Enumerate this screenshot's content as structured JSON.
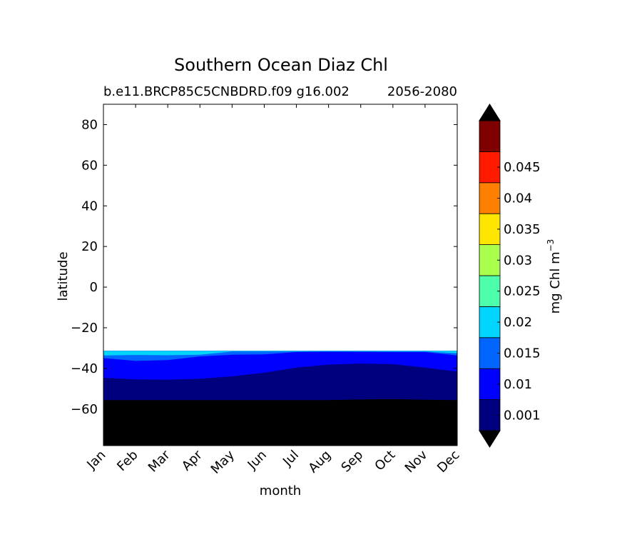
{
  "chart_data": {
    "type": "heatmap",
    "title": "Southern Ocean Diaz Chl",
    "subtitle_left": "b.e11.BRCP85C5CNBDRD.f09 g16.002",
    "subtitle_right": "2056-2080",
    "xlabel": "month",
    "ylabel": "latitude",
    "x_categories": [
      "Jan",
      "Feb",
      "Mar",
      "Apr",
      "May",
      "Jun",
      "Jul",
      "Aug",
      "Sep",
      "Oct",
      "Nov",
      "Dec"
    ],
    "y_ticks": [
      80,
      60,
      40,
      20,
      0,
      -20,
      -40,
      -60
    ],
    "ylim": [
      -78,
      90
    ],
    "colorbar": {
      "label": "mg Chl m",
      "label_superscript": "−3",
      "tick_labels": [
        "0.001",
        "0.01",
        "0.015",
        "0.02",
        "0.025",
        "0.03",
        "0.035",
        "0.04",
        "0.045"
      ],
      "bins": [
        {
          "lo": 0,
          "hi": 0.001,
          "color": "#00007f"
        },
        {
          "lo": 0.001,
          "hi": 0.01,
          "color": "#0000ff"
        },
        {
          "lo": 0.01,
          "hi": 0.015,
          "color": "#0066ff"
        },
        {
          "lo": 0.015,
          "hi": 0.02,
          "color": "#00d5ff"
        },
        {
          "lo": 0.02,
          "hi": 0.025,
          "color": "#4dffaa"
        },
        {
          "lo": 0.025,
          "hi": 0.03,
          "color": "#aaff4d"
        },
        {
          "lo": 0.03,
          "hi": 0.035,
          "color": "#ffe600"
        },
        {
          "lo": 0.035,
          "hi": 0.04,
          "color": "#ff7f00"
        },
        {
          "lo": 0.04,
          "hi": 0.045,
          "color": "#ff1a00"
        },
        {
          "lo": 0.045,
          "hi": 0.05,
          "color": "#7f0000"
        }
      ],
      "under_color": "#000000",
      "over_color": "#000000",
      "extend": "both"
    },
    "data_region": {
      "lat_north": -31.5,
      "lat_south": -78
    },
    "contours": {
      "x_months": [
        0,
        1,
        2,
        3,
        4,
        5,
        6,
        7,
        8,
        9,
        10,
        11
      ],
      "lat_under_boundary": [
        -55.5,
        -55.5,
        -55.5,
        -55.5,
        -55.5,
        -55.5,
        -55.5,
        -55.5,
        -55.2,
        -55.0,
        -55.3,
        -55.5
      ],
      "lat_0p001_boundary": [
        -44.5,
        -45.3,
        -45.5,
        -45.0,
        -43.8,
        -42.0,
        -39.5,
        -38.0,
        -37.5,
        -37.8,
        -39.5,
        -41.5
      ],
      "lat_0p01_boundary": [
        -34.8,
        -36.2,
        -35.8,
        -34.0,
        -33.2,
        -33.0,
        -31.8,
        -31.6,
        -31.7,
        -31.8,
        -31.8,
        -33.5
      ],
      "lat_0p015_boundary": [
        -33.5,
        -33.3,
        -33.4,
        -33.2,
        -31.6,
        -31.6,
        -31.6,
        -31.6,
        -31.6,
        -31.6,
        -31.6,
        -32.4
      ]
    }
  }
}
